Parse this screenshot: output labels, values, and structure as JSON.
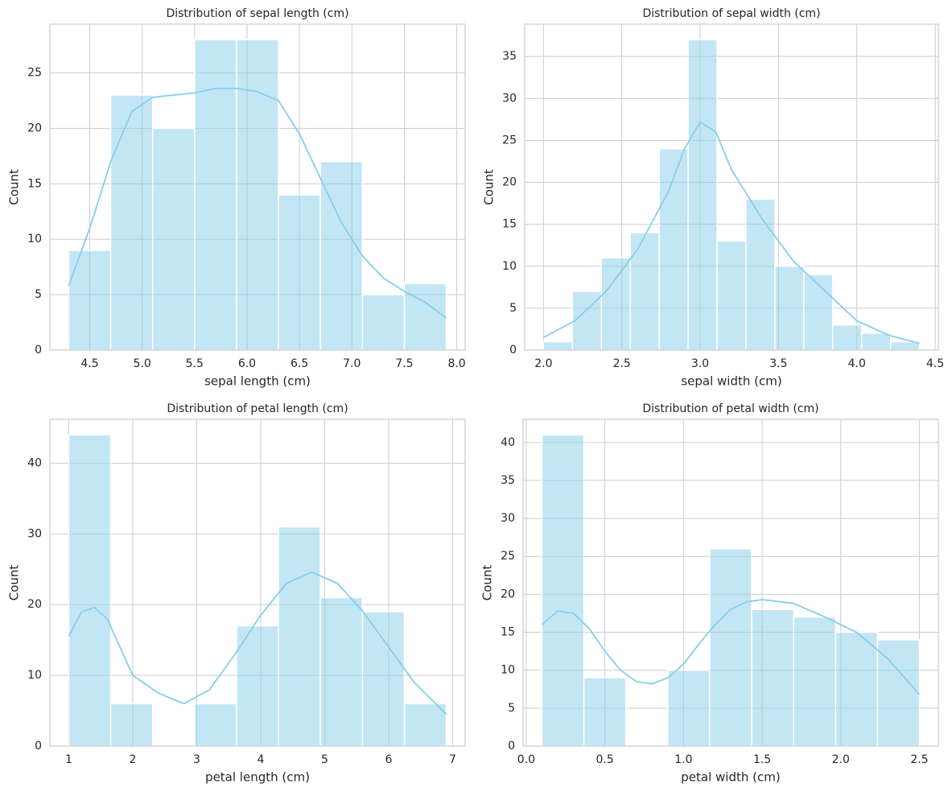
{
  "chart_data": [
    {
      "type": "histogram",
      "title": "Distribution of sepal length (cm)",
      "xlabel": "sepal length (cm)",
      "ylabel": "Count",
      "bins": [
        4.3,
        4.7,
        5.1,
        5.5,
        5.9,
        6.3,
        6.7,
        7.1,
        7.5,
        7.9
      ],
      "counts": [
        9,
        23,
        20,
        28,
        28,
        14,
        17,
        5,
        6
      ],
      "color": "#87ceeb",
      "grid": true,
      "kde": {
        "x": [
          4.3,
          4.5,
          4.7,
          4.9,
          5.1,
          5.3,
          5.5,
          5.7,
          5.9,
          6.1,
          6.3,
          6.5,
          6.7,
          6.9,
          7.1,
          7.3,
          7.5,
          7.7,
          7.9
        ],
        "values": [
          5.8,
          11,
          17,
          21.5,
          22.8,
          23,
          23.2,
          23.6,
          23.6,
          23.3,
          22.5,
          19.5,
          15.5,
          11.5,
          8.5,
          6.5,
          5.3,
          4.3,
          2.9
        ]
      },
      "xlim": [
        4.12,
        8.08
      ],
      "xticks": [
        4.5,
        {
          "value": 5,
          "label": "5.0"
        },
        5.5,
        {
          "value": 6,
          "label": "6.0"
        },
        6.5,
        {
          "value": 7,
          "label": "7.0"
        },
        7.5,
        {
          "value": 8,
          "label": "8.0"
        }
      ],
      "ylim": [
        0,
        29.4
      ],
      "yticks": [
        0,
        5,
        10,
        15,
        20,
        25
      ]
    },
    {
      "type": "histogram",
      "title": "Distribution of sepal width (cm)",
      "xlabel": "sepal width (cm)",
      "ylabel": "Count",
      "bins": [
        2.0,
        2.1846,
        2.3692,
        2.5538,
        2.7385,
        2.9231,
        3.1077,
        3.2923,
        3.4769,
        3.6615,
        3.8462,
        4.0308,
        4.2154,
        4.4
      ],
      "counts": [
        1,
        7,
        11,
        14,
        24,
        37,
        13,
        18,
        10,
        9,
        3,
        2,
        1
      ],
      "color": "#87ceeb",
      "grid": true,
      "kde": {
        "x": [
          2.0,
          2.2,
          2.4,
          2.6,
          2.8,
          2.9,
          3.0,
          3.1,
          3.2,
          3.4,
          3.6,
          3.8,
          4.0,
          4.2,
          4.4
        ],
        "values": [
          1.5,
          3.5,
          7,
          12,
          19,
          24,
          27.2,
          26,
          21.5,
          15.5,
          10.5,
          7,
          3.5,
          1.8,
          0.8
        ]
      },
      "xlim": [
        1.88,
        4.52
      ],
      "xticks": [
        {
          "value": 2,
          "label": "2.0"
        },
        2.5,
        {
          "value": 3,
          "label": "3.0"
        },
        3.5,
        {
          "value": 4,
          "label": "4.0"
        },
        4.5
      ],
      "ylim": [
        0,
        38.85
      ],
      "yticks": [
        0,
        5,
        10,
        15,
        20,
        25,
        30,
        35
      ]
    },
    {
      "type": "histogram",
      "title": "Distribution of petal length (cm)",
      "xlabel": "petal length (cm)",
      "ylabel": "Count",
      "bins": [
        1.0,
        1.6556,
        2.3111,
        2.9667,
        3.6222,
        4.2778,
        4.9333,
        5.5889,
        6.2444,
        6.9
      ],
      "counts": [
        44,
        6,
        0,
        6,
        17,
        31,
        21,
        19,
        6
      ],
      "color": "#87ceeb",
      "grid": true,
      "kde": {
        "x": [
          1.0,
          1.2,
          1.4,
          1.6,
          1.8,
          2.0,
          2.4,
          2.8,
          3.2,
          3.6,
          4.0,
          4.4,
          4.8,
          5.2,
          5.6,
          6.0,
          6.4,
          6.9
        ],
        "values": [
          15.5,
          19,
          19.6,
          18,
          14,
          10,
          7.5,
          6,
          8,
          13,
          18.5,
          23,
          24.6,
          23,
          19,
          14,
          9,
          4.5
        ]
      },
      "xlim": [
        0.705,
        7.195
      ],
      "xticks": [
        1,
        2,
        3,
        4,
        5,
        6,
        7
      ],
      "ylim": [
        0,
        46.2
      ],
      "yticks": [
        0,
        10,
        20,
        30,
        40
      ]
    },
    {
      "type": "histogram",
      "title": "Distribution of petal width (cm)",
      "xlabel": "petal width (cm)",
      "ylabel": "Count",
      "bins": [
        0.1,
        0.3667,
        0.6333,
        0.9,
        1.1667,
        1.4333,
        1.7,
        1.9667,
        2.2333,
        2.5
      ],
      "counts": [
        41,
        9,
        0,
        10,
        26,
        18,
        17,
        15,
        14
      ],
      "color": "#87ceeb",
      "grid": true,
      "kde": {
        "x": [
          0.1,
          0.2,
          0.3,
          0.4,
          0.5,
          0.6,
          0.7,
          0.8,
          0.9,
          1.0,
          1.1,
          1.2,
          1.3,
          1.4,
          1.5,
          1.7,
          1.9,
          2.1,
          2.3,
          2.5
        ],
        "values": [
          16,
          17.8,
          17.5,
          15.5,
          12.5,
          10,
          8.5,
          8.2,
          9,
          10.8,
          13.5,
          16,
          18,
          19,
          19.3,
          18.8,
          17,
          15,
          11.5,
          6.8
        ]
      },
      "xlim": [
        -0.02,
        2.62
      ],
      "xticks": [
        {
          "value": 0,
          "label": "0.0"
        },
        0.5,
        {
          "value": 1,
          "label": "1.0"
        },
        1.5,
        {
          "value": 2,
          "label": "2.0"
        },
        2.5
      ],
      "ylim": [
        0,
        43.05
      ],
      "yticks": [
        0,
        5,
        10,
        15,
        20,
        25,
        30,
        35,
        40
      ]
    }
  ]
}
